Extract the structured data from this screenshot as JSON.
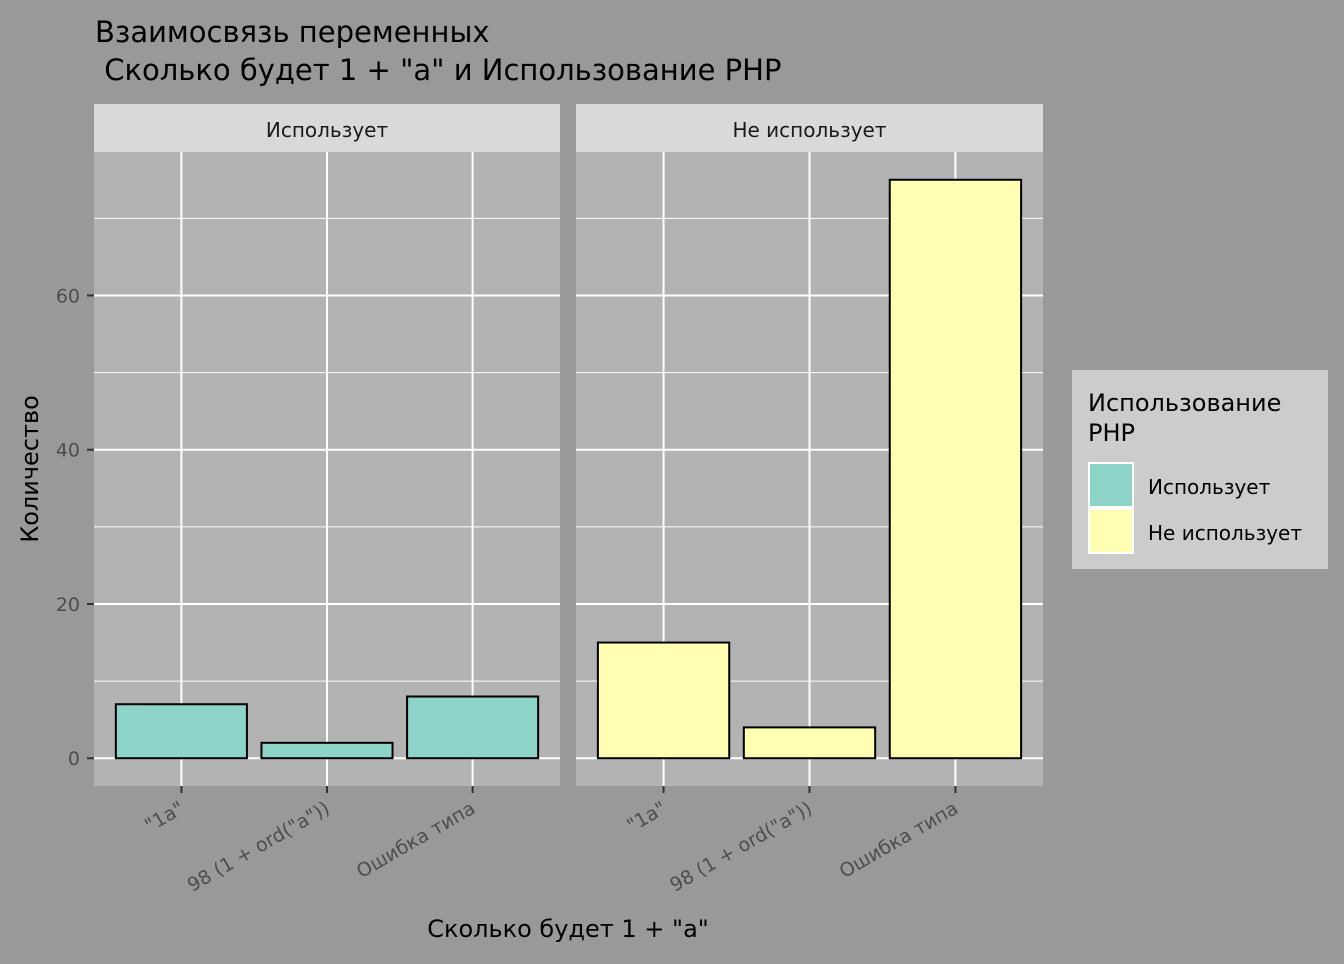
{
  "chart_data": {
    "type": "bar",
    "title_line1": "Взаимосвязь переменных",
    "title_line2": " Сколько будет 1 + \"a\" и Использование PHP",
    "xlabel": "Сколько будет 1 + \"a\"",
    "ylabel": "Количество",
    "ylim": [
      -3.6,
      78.6
    ],
    "y_ticks": [
      0,
      20,
      40,
      60
    ],
    "grid": true,
    "categories": [
      "\"1a\"",
      "98 (1 + ord(\"a\"))",
      "Ошибка типа"
    ],
    "facets": [
      {
        "label": "Использует",
        "color": "#8DD3C7",
        "values": [
          7,
          2,
          8
        ]
      },
      {
        "label": "Не использует",
        "color": "#FFFFB3",
        "values": [
          15,
          4,
          75
        ]
      }
    ],
    "legend": {
      "title_line1": "Использование",
      "title_line2": "PHP",
      "position": "right",
      "entries": [
        "Использует",
        "Не использует"
      ]
    }
  }
}
